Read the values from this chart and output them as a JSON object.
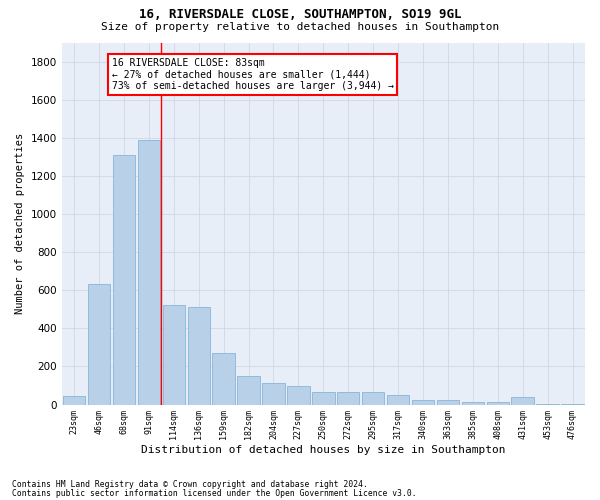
{
  "title1": "16, RIVERSDALE CLOSE, SOUTHAMPTON, SO19 9GL",
  "title2": "Size of property relative to detached houses in Southampton",
  "xlabel": "Distribution of detached houses by size in Southampton",
  "ylabel": "Number of detached properties",
  "categories": [
    "23sqm",
    "46sqm",
    "68sqm",
    "91sqm",
    "114sqm",
    "136sqm",
    "159sqm",
    "182sqm",
    "204sqm",
    "227sqm",
    "250sqm",
    "272sqm",
    "295sqm",
    "317sqm",
    "340sqm",
    "363sqm",
    "385sqm",
    "408sqm",
    "431sqm",
    "453sqm",
    "476sqm"
  ],
  "values": [
    45,
    635,
    1310,
    1390,
    520,
    510,
    270,
    150,
    115,
    100,
    65,
    65,
    65,
    50,
    25,
    25,
    15,
    15,
    40,
    5,
    5
  ],
  "bar_color": "#b8d0e8",
  "bar_edge_color": "#7aadd4",
  "grid_color": "#d0d8e8",
  "vline_x": 3.5,
  "vline_color": "red",
  "annotation_text": "16 RIVERSDALE CLOSE: 83sqm\n← 27% of detached houses are smaller (1,444)\n73% of semi-detached houses are larger (3,944) →",
  "annotation_box_color": "white",
  "annotation_box_edge": "red",
  "ylim": [
    0,
    1900
  ],
  "yticks": [
    0,
    200,
    400,
    600,
    800,
    1000,
    1200,
    1400,
    1600,
    1800
  ],
  "footnote1": "Contains HM Land Registry data © Crown copyright and database right 2024.",
  "footnote2": "Contains public sector information licensed under the Open Government Licence v3.0.",
  "bg_color": "#e8eef8",
  "title1_fontsize": 9,
  "title2_fontsize": 8,
  "ylabel_fontsize": 7.5,
  "xlabel_fontsize": 8,
  "ytick_fontsize": 7.5,
  "xtick_fontsize": 6,
  "footnote_fontsize": 5.8,
  "annot_fontsize": 7
}
